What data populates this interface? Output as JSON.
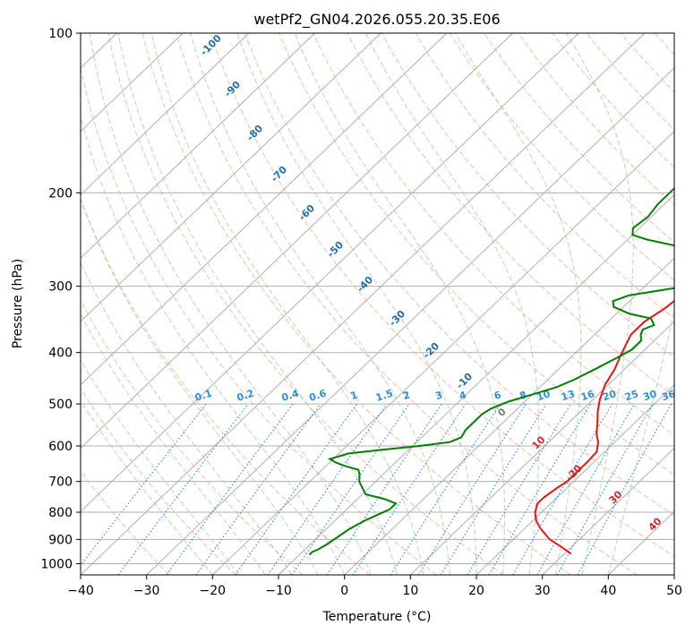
{
  "chart_data": {
    "type": "line",
    "title": "wetPf2_GN04.2026.055.20.35.E06",
    "xlabel": "Temperature (°C)",
    "ylabel": "Pressure (hPa)",
    "xlim": [
      -40,
      50
    ],
    "ylim": [
      1050,
      100
    ],
    "y_scale": "log",
    "x_ticks": [
      -40,
      -30,
      -20,
      -10,
      0,
      10,
      20,
      30,
      40,
      50
    ],
    "x_tick_labels": [
      "−40",
      "−30",
      "−20",
      "−10",
      "0",
      "10",
      "20",
      "30",
      "40",
      "50"
    ],
    "y_ticks": [
      100,
      200,
      300,
      400,
      500,
      600,
      700,
      800,
      900,
      1000
    ],
    "y_tick_labels": [
      "100",
      "200",
      "300",
      "400",
      "500",
      "600",
      "700",
      "800",
      "900",
      "1000"
    ],
    "grid": true,
    "skewt_isotherm_labels": [
      "-100",
      "-90",
      "-80",
      "-70",
      "-60",
      "-50",
      "-40",
      "-30",
      "-20",
      "-10",
      "0",
      "10",
      "20",
      "30",
      "40"
    ],
    "mixing_ratio_labels": [
      "0.1",
      "0.2",
      "0.4",
      "0.6",
      "1",
      "1.5",
      "2",
      "3",
      "4",
      "6",
      "8",
      "10",
      "13",
      "16",
      "20",
      "25",
      "30",
      "36"
    ],
    "series": [
      {
        "color": "#ee1111",
        "points": [
          [
            31.0,
            958
          ],
          [
            28.5,
            930
          ],
          [
            25.5,
            900
          ],
          [
            22.5,
            860
          ],
          [
            20.5,
            830
          ],
          [
            19.0,
            800
          ],
          [
            18.0,
            770
          ],
          [
            18.0,
            750
          ],
          [
            18.5,
            720
          ],
          [
            19.0,
            700
          ],
          [
            19.0,
            670
          ],
          [
            19.0,
            640
          ],
          [
            18.8,
            615
          ],
          [
            17.5,
            590
          ],
          [
            16.0,
            570
          ],
          [
            14.5,
            545
          ],
          [
            12.5,
            515
          ],
          [
            11.0,
            490
          ],
          [
            9.5,
            460
          ],
          [
            8.5,
            430
          ],
          [
            7.5,
            410
          ],
          [
            6.5,
            390
          ],
          [
            5.5,
            370
          ],
          [
            5.5,
            350
          ],
          [
            6.5,
            330
          ],
          [
            7.0,
            310
          ],
          [
            6.5,
            290
          ],
          [
            5.0,
            270
          ],
          [
            3.5,
            255
          ],
          [
            2.5,
            240
          ],
          [
            1.5,
            225
          ],
          [
            1.0,
            210
          ],
          [
            0.5,
            195
          ],
          [
            0.5,
            180
          ],
          [
            1.5,
            170
          ],
          [
            3.0,
            160
          ],
          [
            4.5,
            148
          ],
          [
            5.5,
            135
          ],
          [
            7.0,
            125
          ],
          [
            8.5,
            117
          ],
          [
            9.5,
            110
          ],
          [
            10.5,
            103
          ],
          [
            11.0,
            98
          ]
        ]
      },
      {
        "color": "#008000",
        "points": [
          [
            -8.5,
            962
          ],
          [
            -8.5,
            950
          ],
          [
            -8.0,
            940
          ],
          [
            -7.5,
            920
          ],
          [
            -7.0,
            890
          ],
          [
            -6.5,
            860
          ],
          [
            -5.5,
            830
          ],
          [
            -4.5,
            810
          ],
          [
            -3.5,
            790
          ],
          [
            -3.5,
            770
          ],
          [
            -6.0,
            755
          ],
          [
            -9.5,
            740
          ],
          [
            -11.0,
            720
          ],
          [
            -12.5,
            700
          ],
          [
            -13.5,
            680
          ],
          [
            -14.5,
            665
          ],
          [
            -17.0,
            655
          ],
          [
            -19.0,
            645
          ],
          [
            -20.5,
            635
          ],
          [
            -18.5,
            620
          ],
          [
            -14.0,
            610
          ],
          [
            -9.0,
            600
          ],
          [
            -5.0,
            590
          ],
          [
            -4.0,
            578
          ],
          [
            -4.5,
            560
          ],
          [
            -4.5,
            540
          ],
          [
            -4.5,
            523
          ],
          [
            -4.0,
            510
          ],
          [
            -2.5,
            495
          ],
          [
            0.0,
            480
          ],
          [
            2.5,
            465
          ],
          [
            4.0,
            450
          ],
          [
            5.5,
            430
          ],
          [
            7.0,
            410
          ],
          [
            8.0,
            395
          ],
          [
            8.0,
            380
          ],
          [
            7.0,
            370
          ],
          [
            6.5,
            362
          ],
          [
            7.5,
            355
          ],
          [
            6.0,
            345
          ],
          [
            2.0,
            338
          ],
          [
            -1.5,
            328
          ],
          [
            -2.5,
            320
          ],
          [
            -1.0,
            312
          ],
          [
            2.0,
            307
          ],
          [
            5.0,
            302
          ],
          [
            6.5,
            295
          ],
          [
            7.5,
            285
          ],
          [
            7.5,
            278
          ],
          [
            6.5,
            270
          ],
          [
            4.5,
            262
          ],
          [
            1.0,
            255
          ],
          [
            -3.0,
            250
          ],
          [
            -7.0,
            245
          ],
          [
            -10.0,
            240
          ],
          [
            -11.0,
            233
          ],
          [
            -10.5,
            222
          ],
          [
            -11.0,
            210
          ],
          [
            -11.0,
            196
          ],
          [
            -10.5,
            180
          ],
          [
            -10.5,
            166
          ],
          [
            -10.5,
            160
          ],
          [
            -11.5,
            150
          ],
          [
            -10.5,
            146
          ],
          [
            -8.5,
            141
          ],
          [
            -6.0,
            134
          ],
          [
            -4.5,
            128
          ],
          [
            -4.5,
            122
          ],
          [
            -6.0,
            116
          ],
          [
            -9.0,
            112
          ],
          [
            -11.5,
            108
          ],
          [
            -11.0,
            104
          ],
          [
            -9.5,
            100
          ],
          [
            -8.0,
            96
          ]
        ]
      }
    ]
  }
}
